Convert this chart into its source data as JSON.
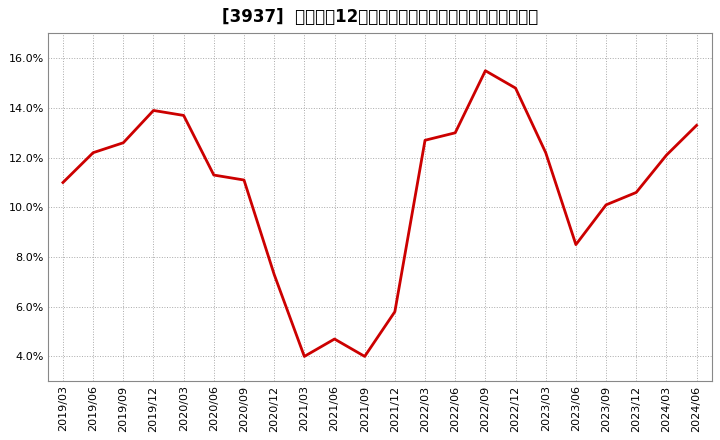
{
  "title": "[3937]  売上高の12か月移動合計の対前年同期増減率の推移",
  "line_color": "#cc0000",
  "background_color": "#ffffff",
  "grid_color": "#aaaaaa",
  "x_labels": [
    "2019/03",
    "2019/06",
    "2019/09",
    "2019/12",
    "2020/03",
    "2020/06",
    "2020/09",
    "2020/12",
    "2021/03",
    "2021/06",
    "2021/09",
    "2021/12",
    "2022/03",
    "2022/06",
    "2022/09",
    "2022/12",
    "2023/03",
    "2023/06",
    "2023/09",
    "2023/12",
    "2024/03",
    "2024/06"
  ],
  "y_values": [
    0.11,
    0.122,
    0.126,
    0.139,
    0.137,
    0.113,
    0.111,
    0.073,
    0.04,
    0.047,
    0.04,
    0.058,
    0.127,
    0.13,
    0.155,
    0.148,
    0.122,
    0.085,
    0.101,
    0.106,
    0.121,
    0.133
  ],
  "ylim": [
    0.03,
    0.17
  ],
  "yticks": [
    0.04,
    0.06,
    0.08,
    0.1,
    0.12,
    0.14,
    0.16
  ],
  "ytick_labels": [
    "4.0%",
    "6.0%",
    "8.0%",
    "10.0%",
    "12.0%",
    "14.0%",
    "16.0%"
  ],
  "line_width": 2.0,
  "title_fontsize": 12,
  "tick_fontsize": 8
}
